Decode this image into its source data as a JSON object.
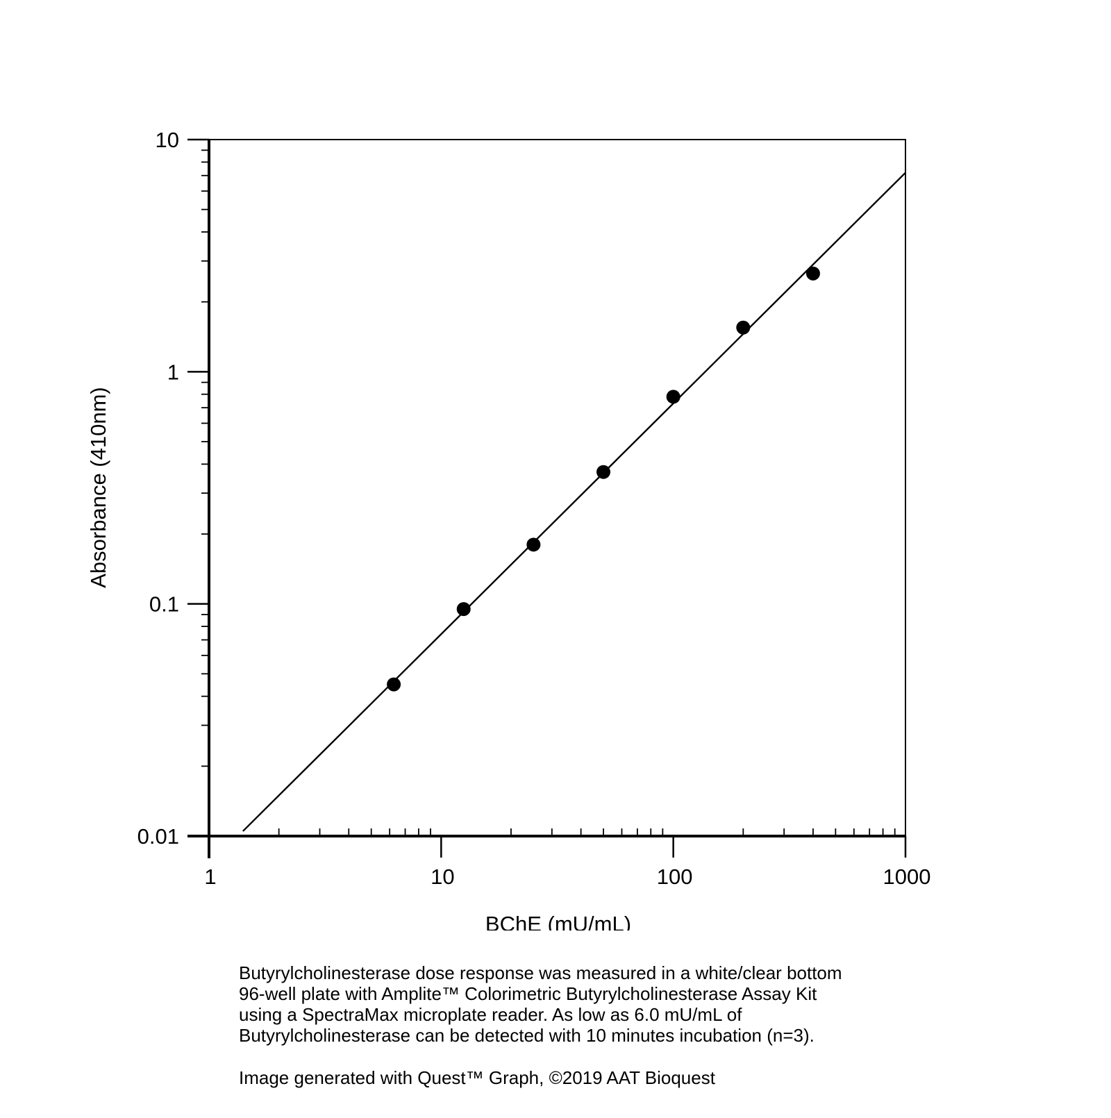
{
  "chart_data": {
    "type": "scatter",
    "xlabel": "BChE (mU/mL)",
    "ylabel": "Absorbance (410nm)",
    "xscale": "log",
    "yscale": "log",
    "xlim": [
      1,
      1000
    ],
    "ylim": [
      0.01,
      10
    ],
    "xticks": [
      "1",
      "10",
      "100",
      "1000"
    ],
    "yticks": [
      "10",
      "1",
      "0.1",
      "0.01"
    ],
    "grid": false,
    "series": [
      {
        "points": [
          {
            "x": 6.25,
            "y": 0.045
          },
          {
            "x": 12.5,
            "y": 0.095
          },
          {
            "x": 25,
            "y": 0.18
          },
          {
            "x": 50,
            "y": 0.37
          },
          {
            "x": 100,
            "y": 0.78
          },
          {
            "x": 200,
            "y": 1.55
          },
          {
            "x": 400,
            "y": 2.65
          }
        ]
      }
    ],
    "fit_line": {
      "x": [
        1.4,
        1000
      ],
      "y": [
        0.0105,
        7.2
      ]
    }
  },
  "caption": {
    "lines": [
      "Butyrylcholinesterase dose response was measured in a white/clear bottom",
      "96-well plate with Amplite™ Colorimetric Butyrylcholinesterase Assay Kit",
      "using a SpectraMax microplate reader. As low as 6.0 mU/mL of",
      "Butyrylcholinesterase can be detected with 10 minutes incubation (n=3)."
    ],
    "credit": "Image generated with Quest™ Graph, ©2019 AAT Bioquest"
  }
}
